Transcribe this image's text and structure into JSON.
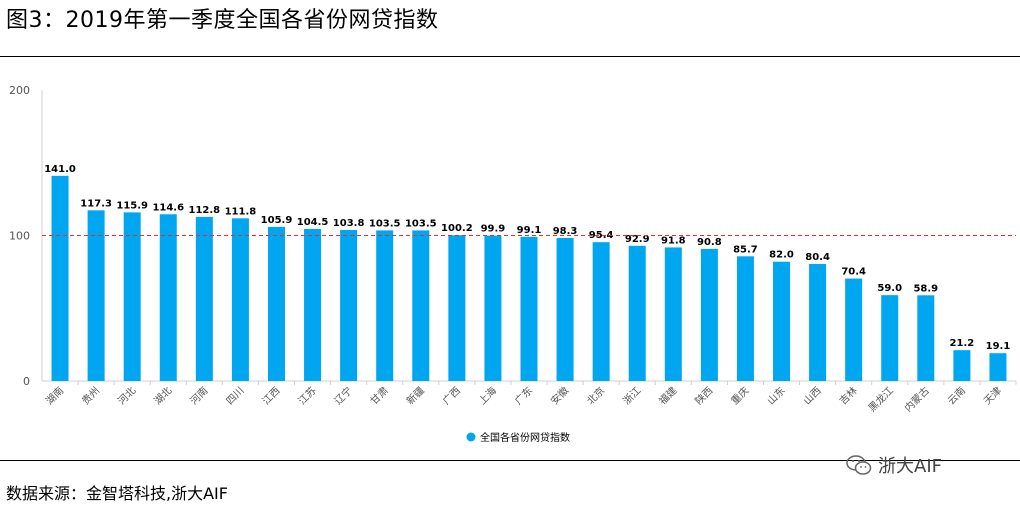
{
  "header": {
    "title": "图3：2019年第一季度全国各省份网贷指数"
  },
  "footer": {
    "source": "数据来源：金智塔科技,浙大AIF",
    "watermark": "浙大AIF"
  },
  "chart_data": {
    "type": "bar",
    "categories": [
      "湖南",
      "贵州",
      "河北",
      "湖北",
      "河南",
      "四川",
      "江西",
      "江苏",
      "辽宁",
      "甘肃",
      "新疆",
      "广西",
      "上海",
      "广东",
      "安徽",
      "北京",
      "浙江",
      "福建",
      "陕西",
      "重庆",
      "山东",
      "山西",
      "吉林",
      "黑龙江",
      "内蒙古",
      "云南",
      "天津"
    ],
    "series": [
      {
        "name": "全国各省份网贷指数",
        "values": [
          141.0,
          117.3,
          115.9,
          114.6,
          112.8,
          111.8,
          105.9,
          104.5,
          103.8,
          103.5,
          103.5,
          100.2,
          99.9,
          99.1,
          98.3,
          95.4,
          92.9,
          91.8,
          90.8,
          85.7,
          82.0,
          80.4,
          70.4,
          59.0,
          58.9,
          21.2,
          19.1
        ],
        "labels": [
          "141.0",
          "117.3",
          "115.9",
          "114.6",
          "112.8",
          "111.8",
          "105.9",
          "104.5",
          "103.8",
          "103.5",
          "103.5",
          "100.2",
          "99.9",
          "99.1",
          "98.3",
          "95.4",
          "92.9",
          "91.8",
          "90.8",
          "85.7",
          "82.0",
          "80.4",
          "70.4",
          "59.0",
          "58.9",
          "21.2",
          "19.1"
        ]
      }
    ],
    "yticks": [
      "0",
      "100",
      "200"
    ],
    "ylim": [
      0,
      200
    ],
    "reference_line": 100,
    "legend_position": "bottom",
    "colors": {
      "bar": "#00a6f0",
      "reference": "#e0312a"
    }
  }
}
